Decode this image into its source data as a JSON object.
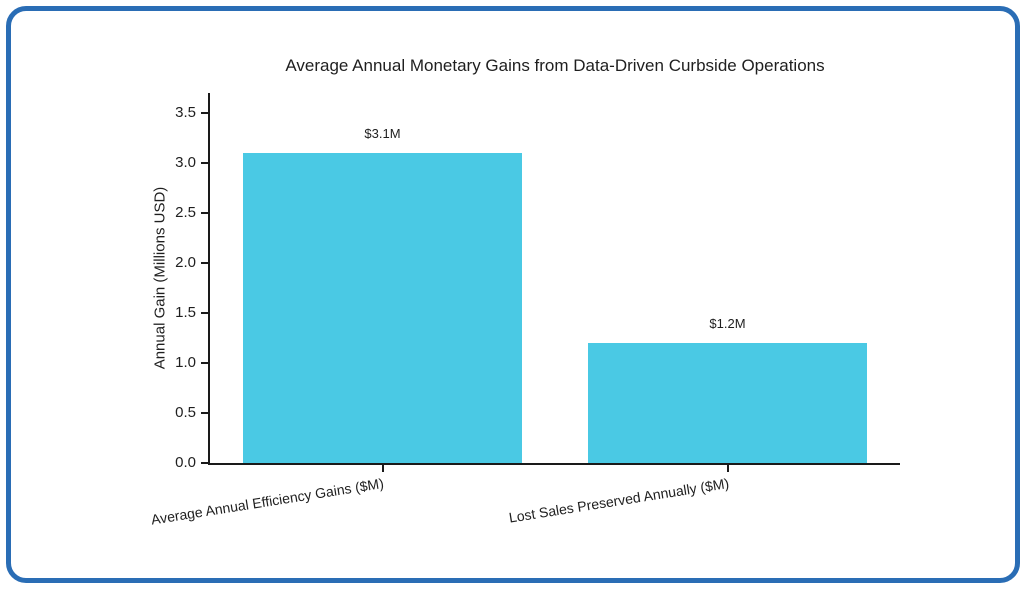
{
  "frame": {
    "border_color": "#2a6db5",
    "background": "#ffffff"
  },
  "chart_data": {
    "type": "bar",
    "title": "Average Annual Monetary Gains from Data-Driven Curbside Operations",
    "xlabel": "",
    "ylabel": "Annual Gain (Millions USD)",
    "categories": [
      "Average Annual Efficiency Gains ($M)",
      "Lost Sales Preserved Annually ($M)"
    ],
    "values": [
      3.1,
      1.2
    ],
    "value_labels": [
      "$3.1M",
      "$1.2M"
    ],
    "bar_color": "#4ac9e4",
    "axis_color": "#1a1a1a",
    "text_color": "#1f1f1f",
    "ylim": [
      0,
      3.7
    ],
    "yticks": [
      "0.0",
      "0.5",
      "1.0",
      "1.5",
      "2.0",
      "2.5",
      "3.0",
      "3.5"
    ],
    "grid": false,
    "legend": null,
    "xtick_rotation_deg": -9
  }
}
